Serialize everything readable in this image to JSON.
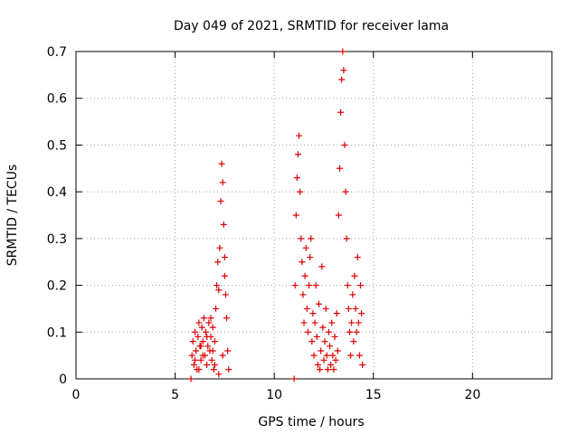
{
  "chart_data": {
    "type": "scatter",
    "title": "Day 049 of 2021, SRMTID for receiver lama",
    "xlabel": "GPS time / hours",
    "ylabel": "SRMTID / TECUs",
    "xlim": [
      0,
      24
    ],
    "ylim": [
      0,
      0.7
    ],
    "grid": true,
    "xticks": [
      0,
      5,
      10,
      15,
      20
    ],
    "xtick_labels": [
      "0",
      "5",
      "10",
      "15",
      "20"
    ],
    "yticks": [
      0,
      0.1,
      0.2,
      0.3,
      0.4,
      0.5,
      0.6,
      0.7
    ],
    "ytick_labels": [
      "0",
      "0.1",
      "0.2",
      "0.3",
      "0.4",
      "0.5",
      "0.6",
      "0.7"
    ],
    "marker": "+",
    "marker_color": "#e00000",
    "series": [
      {
        "name": "SRMTID",
        "points": [
          [
            5.8,
            0.0
          ],
          [
            5.85,
            0.05
          ],
          [
            5.9,
            0.08
          ],
          [
            5.95,
            0.03
          ],
          [
            6.0,
            0.1
          ],
          [
            6.05,
            0.06
          ],
          [
            6.1,
            0.02
          ],
          [
            6.15,
            0.09
          ],
          [
            6.2,
            0.12
          ],
          [
            6.25,
            0.07
          ],
          [
            6.3,
            0.04
          ],
          [
            6.35,
            0.11
          ],
          [
            6.4,
            0.08
          ],
          [
            6.45,
            0.13
          ],
          [
            6.5,
            0.05
          ],
          [
            6.55,
            0.1
          ],
          [
            6.6,
            0.03
          ],
          [
            6.65,
            0.07
          ],
          [
            6.7,
            0.12
          ],
          [
            6.75,
            0.06
          ],
          [
            6.8,
            0.09
          ],
          [
            6.85,
            0.04
          ],
          [
            6.9,
            0.11
          ],
          [
            6.95,
            0.02
          ],
          [
            7.0,
            0.08
          ],
          [
            7.05,
            0.15
          ],
          [
            7.1,
            0.2
          ],
          [
            7.15,
            0.25
          ],
          [
            7.2,
            0.19
          ],
          [
            7.25,
            0.28
          ],
          [
            7.3,
            0.38
          ],
          [
            7.35,
            0.46
          ],
          [
            7.4,
            0.42
          ],
          [
            7.45,
            0.33
          ],
          [
            7.5,
            0.22
          ],
          [
            7.55,
            0.18
          ],
          [
            7.6,
            0.13
          ],
          [
            7.65,
            0.06
          ],
          [
            7.7,
            0.02
          ],
          [
            6.0,
            0.04
          ],
          [
            6.2,
            0.02
          ],
          [
            6.4,
            0.05
          ],
          [
            6.6,
            0.09
          ],
          [
            6.8,
            0.13
          ],
          [
            7.0,
            0.03
          ],
          [
            7.2,
            0.01
          ],
          [
            7.4,
            0.05
          ],
          [
            7.5,
            0.26
          ],
          [
            6.3,
            0.07
          ],
          [
            6.9,
            0.06
          ],
          [
            11.0,
            0.0
          ],
          [
            11.05,
            0.2
          ],
          [
            11.1,
            0.35
          ],
          [
            11.15,
            0.43
          ],
          [
            11.2,
            0.48
          ],
          [
            11.25,
            0.52
          ],
          [
            11.3,
            0.4
          ],
          [
            11.35,
            0.3
          ],
          [
            11.4,
            0.25
          ],
          [
            11.45,
            0.18
          ],
          [
            11.5,
            0.12
          ],
          [
            11.55,
            0.22
          ],
          [
            11.6,
            0.28
          ],
          [
            11.65,
            0.15
          ],
          [
            11.7,
            0.1
          ],
          [
            11.75,
            0.2
          ],
          [
            11.8,
            0.26
          ],
          [
            11.85,
            0.3
          ],
          [
            11.9,
            0.08
          ],
          [
            11.95,
            0.14
          ],
          [
            12.0,
            0.05
          ],
          [
            12.05,
            0.12
          ],
          [
            12.1,
            0.2
          ],
          [
            12.15,
            0.09
          ],
          [
            12.2,
            0.03
          ],
          [
            12.25,
            0.16
          ],
          [
            12.3,
            0.02
          ],
          [
            12.35,
            0.06
          ],
          [
            12.4,
            0.24
          ],
          [
            12.45,
            0.11
          ],
          [
            12.5,
            0.04
          ],
          [
            12.55,
            0.08
          ],
          [
            12.6,
            0.15
          ],
          [
            12.65,
            0.05
          ],
          [
            12.7,
            0.02
          ],
          [
            12.75,
            0.1
          ],
          [
            12.8,
            0.07
          ],
          [
            12.85,
            0.03
          ],
          [
            12.9,
            0.12
          ],
          [
            12.95,
            0.05
          ],
          [
            13.0,
            0.02
          ],
          [
            13.05,
            0.09
          ],
          [
            13.1,
            0.04
          ],
          [
            13.15,
            0.14
          ],
          [
            13.2,
            0.06
          ],
          [
            13.25,
            0.35
          ],
          [
            13.3,
            0.45
          ],
          [
            13.35,
            0.57
          ],
          [
            13.4,
            0.64
          ],
          [
            13.45,
            0.7
          ],
          [
            13.5,
            0.66
          ],
          [
            13.55,
            0.5
          ],
          [
            13.6,
            0.4
          ],
          [
            13.65,
            0.3
          ],
          [
            13.7,
            0.2
          ],
          [
            13.75,
            0.15
          ],
          [
            13.8,
            0.1
          ],
          [
            13.85,
            0.05
          ],
          [
            13.9,
            0.12
          ],
          [
            13.95,
            0.18
          ],
          [
            14.0,
            0.08
          ],
          [
            14.05,
            0.22
          ],
          [
            14.1,
            0.15
          ],
          [
            14.15,
            0.1
          ],
          [
            14.2,
            0.26
          ],
          [
            14.25,
            0.12
          ],
          [
            14.3,
            0.05
          ],
          [
            14.35,
            0.2
          ],
          [
            14.4,
            0.14
          ],
          [
            14.45,
            0.03
          ]
        ]
      }
    ]
  }
}
